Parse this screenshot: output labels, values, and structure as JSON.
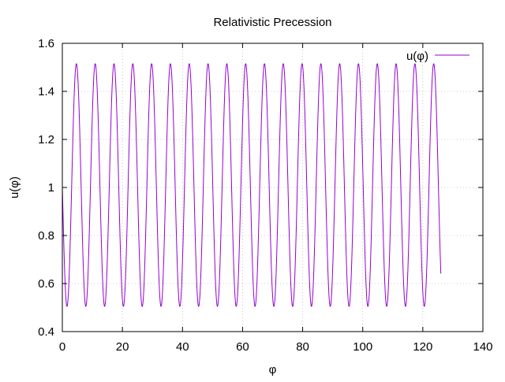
{
  "chart_data": {
    "type": "line",
    "title": "Relativistic Precession",
    "xlabel": "φ",
    "ylabel": "u(φ)",
    "xlim": [
      0,
      140
    ],
    "ylim": [
      0.4,
      1.6
    ],
    "xticks": [
      "0",
      "20",
      "40",
      "60",
      "80",
      "100",
      "120",
      "140"
    ],
    "yticks": [
      "0.4",
      "0.6",
      "0.8",
      "1",
      "1.2",
      "1.4",
      "1.6"
    ],
    "grid": true,
    "legend_position": "top-right",
    "series": [
      {
        "name": "u(φ)",
        "color": "#9400d3",
        "curve": "oscillation",
        "x_range": [
          0,
          126
        ],
        "min": 0.505,
        "max": 1.515,
        "start_value": 1.0,
        "period": 6.26,
        "first_min_x": 1.55
      }
    ]
  }
}
